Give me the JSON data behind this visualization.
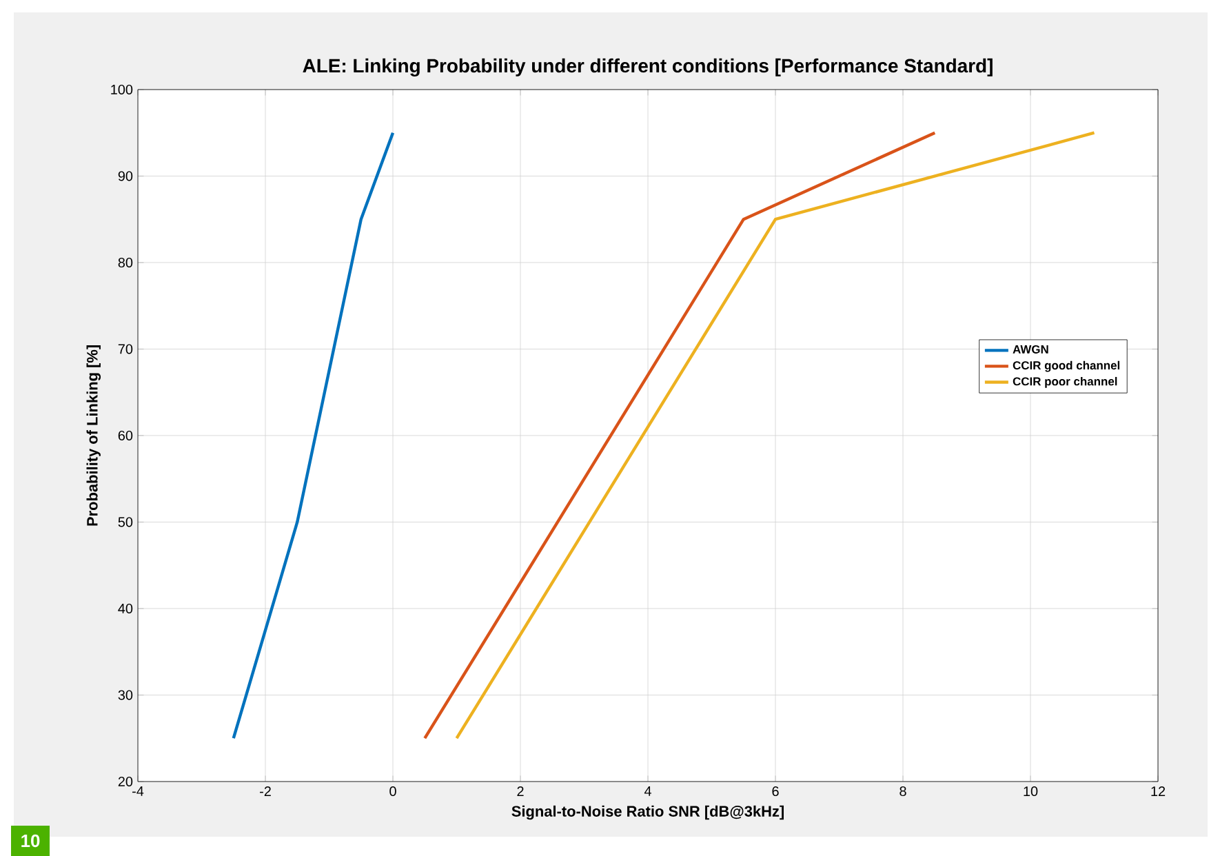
{
  "chart_data": {
    "type": "line",
    "title": "ALE: Linking Probability under different conditions [Performance Standard]",
    "xlabel": "Signal-to-Noise Ratio SNR [dB@3kHz]",
    "ylabel": "Probability of Linking [%]",
    "xlim": [
      -4,
      12
    ],
    "xticks": [
      -4,
      -2,
      0,
      2,
      4,
      6,
      8,
      10,
      12
    ],
    "ylim": [
      20,
      100
    ],
    "yticks": [
      20,
      30,
      40,
      50,
      60,
      70,
      80,
      90,
      100
    ],
    "grid": true,
    "legend": "right",
    "marker": "none",
    "line_style": "solid",
    "annotations": [
      "10"
    ],
    "series": [
      {
        "name": "AWGN",
        "color": "#0072bd",
        "x": [
          -2.5,
          -1.5,
          -0.5,
          0
        ],
        "values": [
          25,
          50,
          85,
          95
        ]
      },
      {
        "name": "CCIR good channel",
        "color": "#d95319",
        "x": [
          0.5,
          5.5,
          8.5
        ],
        "values": [
          25,
          85,
          95
        ]
      },
      {
        "name": "CCIR poor channel",
        "color": "#edb120",
        "x": [
          1,
          6,
          11
        ],
        "values": [
          25,
          85,
          95
        ]
      }
    ]
  }
}
